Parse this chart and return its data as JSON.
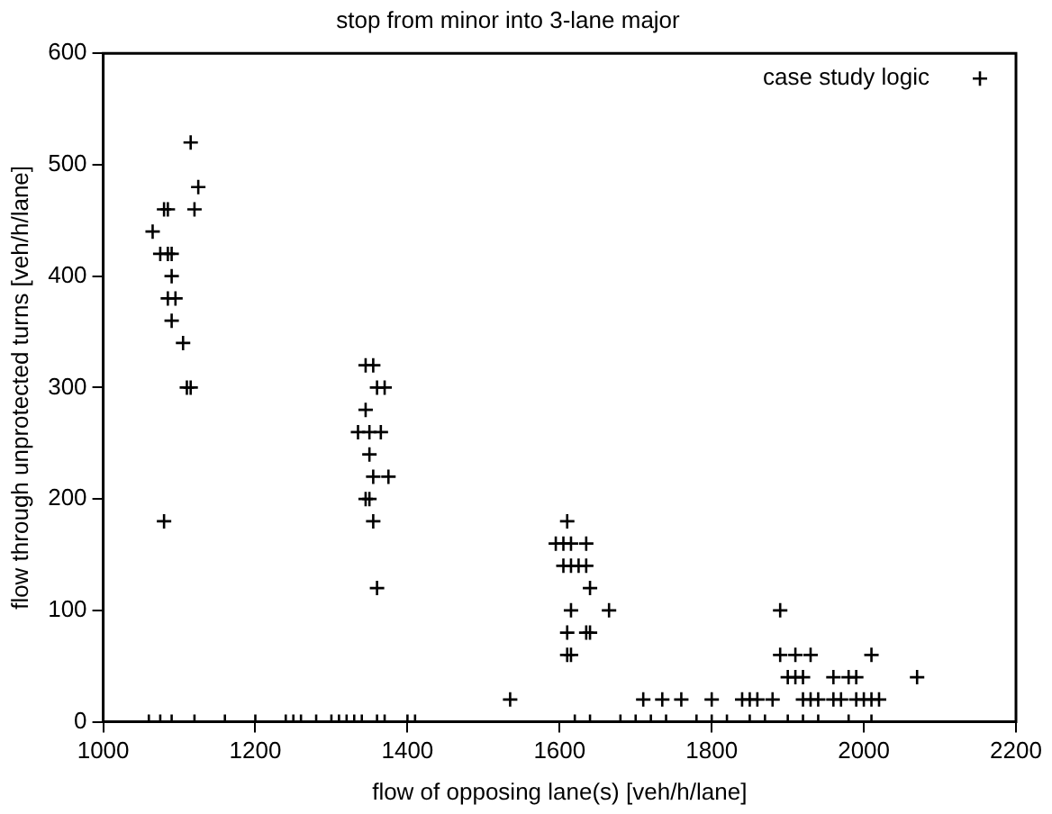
{
  "chart_data": {
    "type": "scatter",
    "title": "stop from minor into 3-lane major",
    "xlabel": "flow of opposing lane(s) [veh/h/lane]",
    "ylabel": "flow through unprotected turns [veh/h/lane]",
    "xlim": [
      1000,
      2200
    ],
    "xticks": [
      1000,
      1200,
      1400,
      1600,
      1800,
      2000,
      2200
    ],
    "ylim": [
      0,
      600
    ],
    "yticks": [
      0,
      100,
      200,
      300,
      400,
      500,
      600
    ],
    "grid": false,
    "legend": "top right",
    "marker": "cross",
    "series": [
      {
        "name": "case study logic",
        "color": "#000000",
        "x": [
          1065,
          1075,
          1080,
          1080,
          1085,
          1085,
          1090,
          1085,
          1090,
          1095,
          1090,
          1105,
          1110,
          1115,
          1115,
          1120,
          1125,
          1345,
          1355,
          1360,
          1370,
          1345,
          1335,
          1350,
          1365,
          1350,
          1355,
          1375,
          1345,
          1350,
          1355,
          1360,
          1610,
          1595,
          1605,
          1615,
          1635,
          1605,
          1615,
          1625,
          1635,
          1640,
          1615,
          1665,
          1610,
          1635,
          1640,
          1610,
          1615,
          1535,
          1710,
          1735,
          1760,
          1800,
          1840,
          1850,
          1860,
          1880,
          1920,
          1930,
          1940,
          1960,
          1970,
          1990,
          2000,
          2010,
          2020,
          1900,
          1910,
          1920,
          1960,
          1980,
          1990,
          2070,
          1890,
          1910,
          1930,
          2010,
          1890,
          1060,
          1075,
          1090,
          1120,
          1160,
          1200,
          1240,
          1250,
          1260,
          1280,
          1300,
          1310,
          1320,
          1330,
          1340,
          1360,
          1370,
          1400,
          1410,
          1620,
          1640,
          1680,
          1700,
          1720,
          1740,
          1780,
          1800,
          1820,
          1850,
          1870,
          1900,
          1920,
          1940,
          1980,
          2010
        ],
        "values": [
          440,
          420,
          180,
          460,
          460,
          420,
          420,
          380,
          400,
          380,
          360,
          340,
          300,
          300,
          520,
          460,
          480,
          320,
          320,
          300,
          300,
          280,
          260,
          260,
          260,
          240,
          220,
          220,
          200,
          200,
          180,
          120,
          180,
          160,
          160,
          160,
          160,
          140,
          140,
          140,
          140,
          120,
          100,
          100,
          80,
          80,
          80,
          60,
          60,
          20,
          20,
          20,
          20,
          20,
          20,
          20,
          20,
          20,
          20,
          20,
          20,
          20,
          20,
          20,
          20,
          20,
          20,
          40,
          40,
          40,
          40,
          40,
          40,
          40,
          60,
          60,
          60,
          60,
          100,
          0,
          0,
          0,
          0,
          0,
          0,
          0,
          0,
          0,
          0,
          0,
          0,
          0,
          0,
          0,
          0,
          0,
          0,
          0,
          0,
          0,
          0,
          0,
          0,
          0,
          0,
          0,
          0,
          0,
          0,
          0,
          0,
          0,
          0,
          0
        ]
      }
    ]
  }
}
